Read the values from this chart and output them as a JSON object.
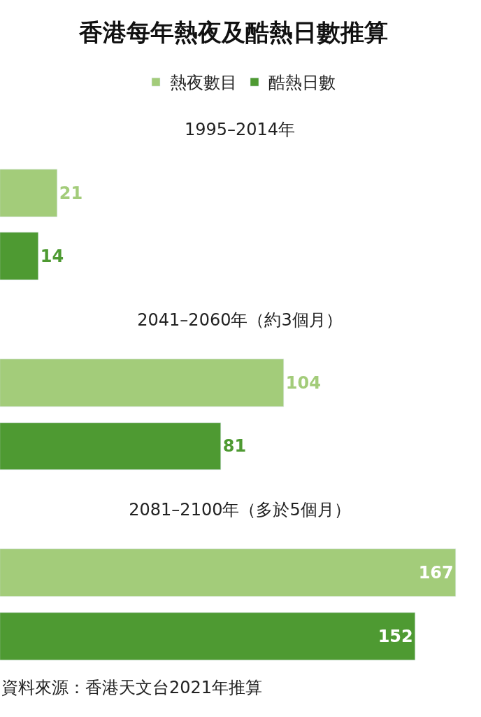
{
  "chart_data": {
    "type": "bar",
    "orientation": "horizontal",
    "title": "香港每年熱夜及酷熱日數推算",
    "categories": [
      "1995–2014年",
      "2041–2060年（約3個月）",
      "2081–2100年（多於5個月）"
    ],
    "series": [
      {
        "name": "熱夜數目",
        "color": "#a3cc7a",
        "values": [
          21,
          104,
          167
        ]
      },
      {
        "name": "酷熱日數",
        "color": "#4e9a32",
        "values": [
          14,
          81,
          152
        ]
      }
    ],
    "data_labels": true,
    "legend": "top",
    "tick_labels": false,
    "annotations": [
      "資料來源：香港天文台2021年推算"
    ]
  }
}
